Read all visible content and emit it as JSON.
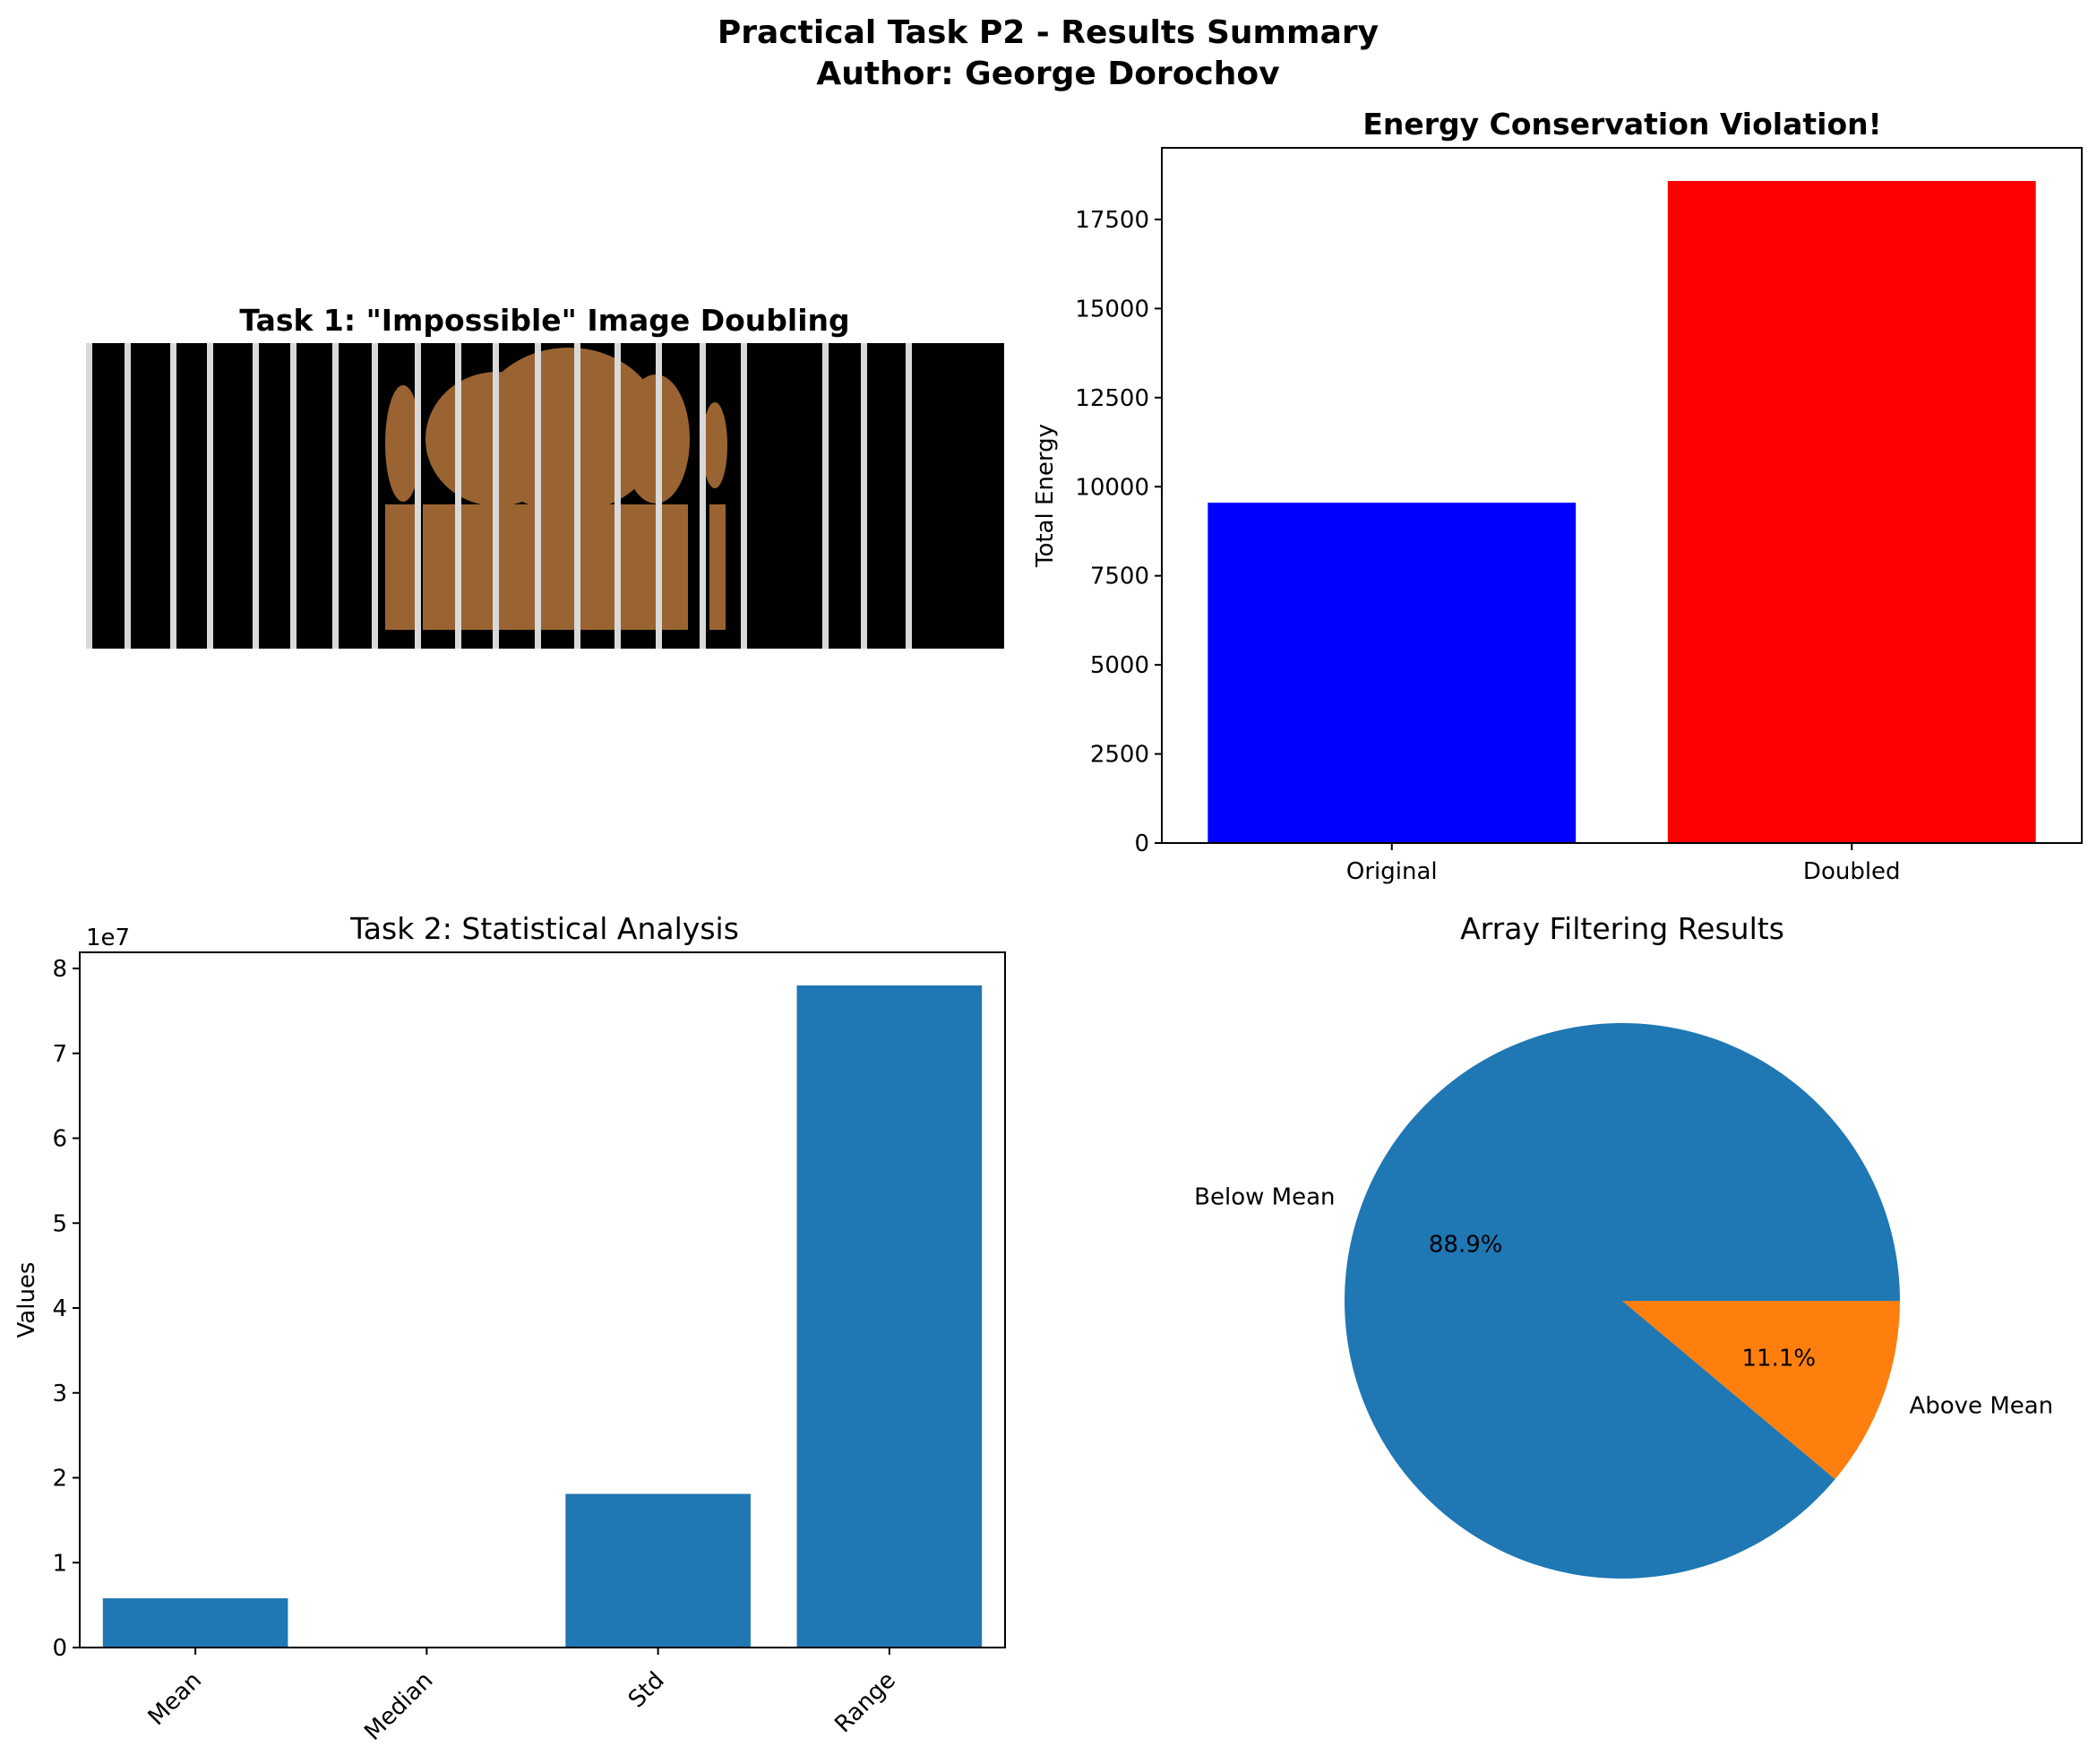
{
  "figure": {
    "title_line1": "Practical Task P2 - Results Summary",
    "title_line2": "Author: George Dorochov"
  },
  "chart_data": [
    {
      "type": "image",
      "title": "Task 1: \"Impossible\" Image Doubling",
      "axis": "off",
      "colors": {
        "background": "#000000",
        "object": "#9a6432",
        "stripes": "#d9d9d9"
      }
    },
    {
      "type": "bar",
      "title": "Energy Conservation Violation!",
      "title_color": "#ff0000",
      "categories": [
        "Original",
        "Doubled"
      ],
      "values": [
        9550,
        18580
      ],
      "colors": [
        "#0000ff",
        "#ff0000"
      ],
      "xlabel": "",
      "ylabel": "Total Energy",
      "ylim": [
        0,
        19510
      ],
      "yticks": [
        0,
        2500,
        5000,
        7500,
        10000,
        12500,
        15000,
        17500
      ],
      "grid": false
    },
    {
      "type": "bar",
      "title": "Task 2: Statistical Analysis",
      "categories": [
        "Mean",
        "Median",
        "Std",
        "Range"
      ],
      "values": [
        5800000,
        0,
        18100000,
        78000000
      ],
      "color": "#1f77b4",
      "xlabel": "",
      "ylabel": "Values",
      "ylim": [
        0,
        81900000
      ],
      "yticks": [
        0,
        1,
        2,
        3,
        4,
        5,
        6,
        7,
        8
      ],
      "y_offset_label": "1e7",
      "xtick_rotation": 45,
      "grid": false
    },
    {
      "type": "pie",
      "title": "Array Filtering Results",
      "labels": [
        "Below Mean",
        "Above Mean"
      ],
      "percents": [
        88.9,
        11.1
      ],
      "pct_labels": [
        "88.9%",
        "11.1%"
      ],
      "colors": [
        "#1f77b4",
        "#ff7f0e"
      ]
    }
  ]
}
